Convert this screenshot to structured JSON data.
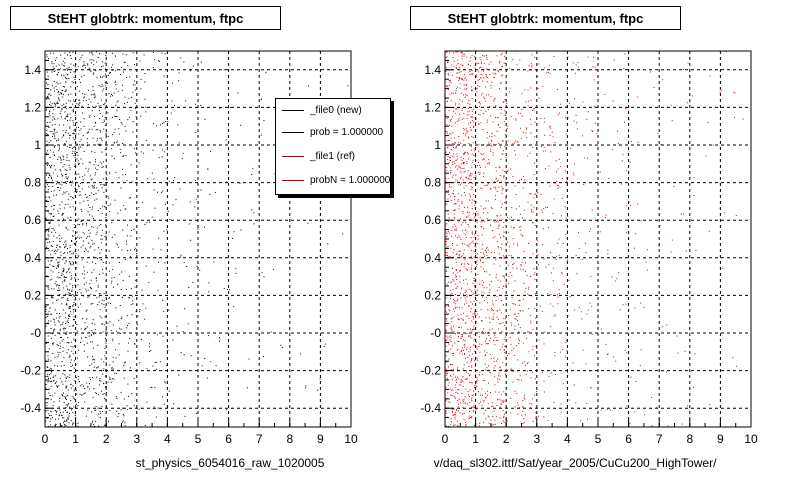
{
  "chart_data": [
    {
      "type": "scatter",
      "title": "StEHT globtrk: momentum, ftpc",
      "xlabel": "st_physics_6054016_raw_1020005",
      "xlim": [
        0,
        10
      ],
      "ylim": [
        -0.5,
        1.5
      ],
      "xticks": [
        "0",
        "1",
        "2",
        "3",
        "4",
        "5",
        "6",
        "7",
        "8",
        "9",
        "10"
      ],
      "yticks": [
        "-0.4",
        "-0.2",
        "-0",
        "0.2",
        "0.4",
        "0.6",
        "0.8",
        "1",
        "1.2",
        "1.4"
      ],
      "grid": true,
      "marker_color": "#000000",
      "legend": {
        "placement": "top-right",
        "entries": [
          {
            "label": "_file0 (new)",
            "color": "#000000"
          },
          {
            "label": "prob = 1.000000",
            "color": "#000000"
          },
          {
            "label": "_file1 (ref)",
            "color": "#cc0000"
          },
          {
            "label": "probN = 1.000000",
            "color": "#cc0000"
          }
        ]
      },
      "distribution": {
        "x_density_by_unit": [
          1.0,
          0.6,
          0.28,
          0.12,
          0.06,
          0.035,
          0.02,
          0.014,
          0.01,
          0.007
        ],
        "y_uniform": true
      }
    },
    {
      "type": "scatter",
      "title": "StEHT globtrk: momentum, ftpc",
      "xlabel": "v/daq_sl302.ittf/Sat/year_2005/CuCu200_HighTower/",
      "xlim": [
        0,
        10
      ],
      "ylim": [
        -0.5,
        1.5
      ],
      "xticks": [
        "0",
        "1",
        "2",
        "3",
        "4",
        "5",
        "6",
        "7",
        "8",
        "9",
        "10"
      ],
      "yticks": [
        "-0.4",
        "-0.2",
        "-0",
        "0.2",
        "0.4",
        "0.6",
        "0.8",
        "1",
        "1.2",
        "1.4"
      ],
      "grid": true,
      "marker_color": "#dd0000",
      "distribution": {
        "x_density_by_unit": [
          1.0,
          0.6,
          0.3,
          0.15,
          0.08,
          0.05,
          0.035,
          0.025,
          0.018,
          0.012
        ],
        "y_uniform": true
      }
    }
  ]
}
